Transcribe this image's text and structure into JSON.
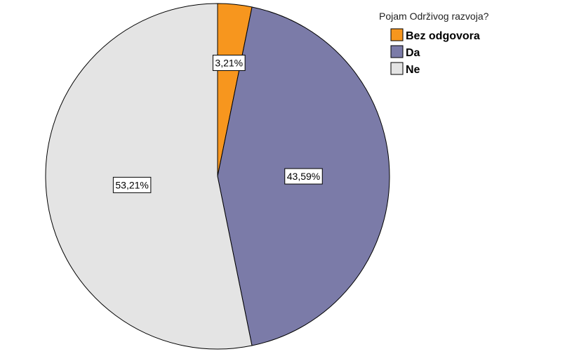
{
  "chart_data": {
    "type": "pie",
    "legend_title": "Pojam Održivog razvoja?",
    "legend_position": "top-right",
    "start_angle_deg": 0,
    "direction": "clockwise",
    "slices": [
      {
        "label": "Bez odgovora",
        "value": 3.21,
        "value_label": "3,21%",
        "color": "#F7961E"
      },
      {
        "label": "Da",
        "value": 43.59,
        "value_label": "43,59%",
        "color": "#7B7BA8"
      },
      {
        "label": "Ne",
        "value": 53.21,
        "value_label": "53,21%",
        "color": "#E4E4E4"
      }
    ]
  }
}
